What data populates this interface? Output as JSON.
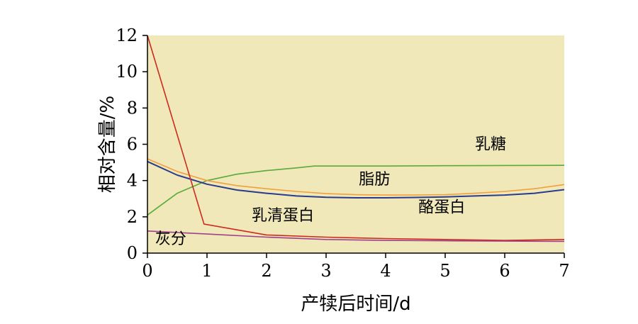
{
  "chart_data": {
    "type": "line",
    "xlabel": "产犊后时间/d",
    "ylabel": "相对含量/%",
    "xlim": [
      0,
      7
    ],
    "ylim": [
      0,
      12
    ],
    "xticks": [
      "0",
      "1",
      "2",
      "3",
      "4",
      "5",
      "6",
      "7"
    ],
    "yticks": [
      "0",
      "2",
      "4",
      "6",
      "8",
      "10",
      "12"
    ],
    "plot_background": "#f0e8b8",
    "series": [
      {
        "name": "乳糖",
        "color": "#5aaa3c",
        "x": [
          0,
          0.5,
          1,
          1.5,
          2,
          2.5,
          2.8,
          4,
          5,
          6,
          7
        ],
        "y": [
          2.1,
          3.3,
          4.0,
          4.35,
          4.55,
          4.7,
          4.8,
          4.8,
          4.82,
          4.83,
          4.84
        ]
      },
      {
        "name": "脂肪",
        "color": "#f0a040",
        "x": [
          0,
          0.5,
          1,
          1.5,
          2,
          2.5,
          3,
          3.5,
          4,
          4.5,
          5,
          5.5,
          6,
          6.5,
          7
        ],
        "y": [
          5.2,
          4.5,
          4.0,
          3.72,
          3.55,
          3.4,
          3.28,
          3.22,
          3.2,
          3.2,
          3.22,
          3.3,
          3.4,
          3.55,
          3.78
        ]
      },
      {
        "name": "酪蛋白",
        "color": "#2a3a8c",
        "x": [
          0,
          0.5,
          1,
          1.5,
          2,
          2.5,
          3,
          3.5,
          4,
          4.5,
          5,
          5.5,
          6,
          6.5,
          7
        ],
        "y": [
          5.05,
          4.3,
          3.8,
          3.48,
          3.3,
          3.15,
          3.08,
          3.05,
          3.05,
          3.07,
          3.1,
          3.15,
          3.2,
          3.3,
          3.5
        ]
      },
      {
        "name": "乳清蛋白",
        "color": "#cc2a1e",
        "x": [
          0,
          0.95,
          2,
          3,
          4,
          5,
          6,
          7
        ],
        "y": [
          12.0,
          1.6,
          1.0,
          0.88,
          0.8,
          0.75,
          0.7,
          0.75
        ]
      },
      {
        "name": "灰分",
        "color": "#a0408c",
        "x": [
          0,
          1,
          2,
          3,
          4,
          5,
          6,
          7
        ],
        "y": [
          1.22,
          1.05,
          0.88,
          0.75,
          0.7,
          0.68,
          0.66,
          0.65
        ]
      }
    ],
    "annotations": [
      {
        "text": "乳糖",
        "x": 5.5,
        "y": 5.72
      },
      {
        "text": "脂肪",
        "x": 3.55,
        "y": 3.8
      },
      {
        "text": "酪蛋白",
        "x": 4.55,
        "y": 2.25
      },
      {
        "text": "乳清蛋白",
        "x": 1.75,
        "y": 1.8
      },
      {
        "text": "灰分",
        "x": 0.13,
        "y": 0.5
      }
    ]
  }
}
